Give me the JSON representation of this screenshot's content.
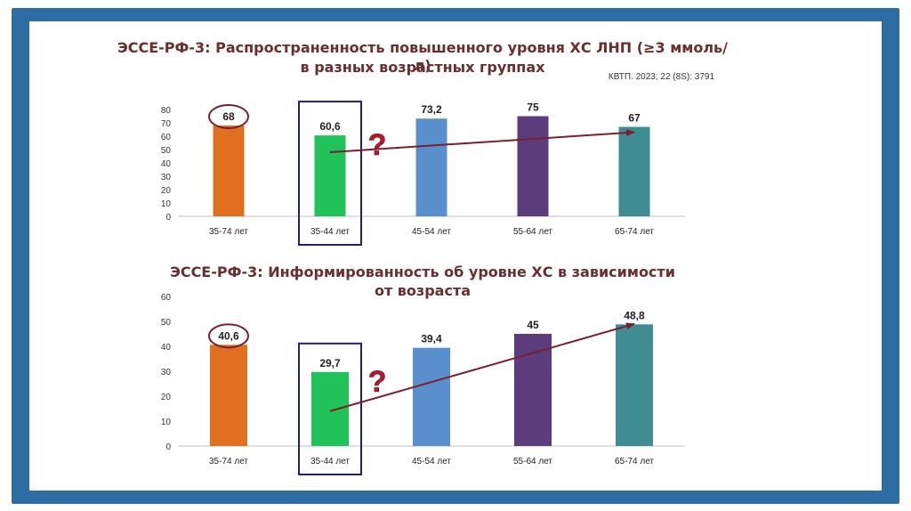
{
  "slide": {
    "source": "КВТП. 2023; 22 (8S): 3791"
  },
  "chart_data": [
    {
      "type": "bar",
      "title_line1": "ЭССЕ-РФ-3: Распространенность повышенного уровня ХС ЛНП (≥3 ммоль/л)",
      "title_line2": "в разных возрастных группах",
      "categories": [
        "35-74 лет",
        "35-44 лет",
        "45-54 лет",
        "55-64 лет",
        "65-74 лет"
      ],
      "values": [
        68,
        60.6,
        73.2,
        75,
        67
      ],
      "value_labels": [
        "68",
        "60,6",
        "73,2",
        "75",
        "67"
      ],
      "yticks": [
        0,
        10,
        20,
        30,
        40,
        50,
        60,
        70,
        80
      ],
      "ylim": [
        0,
        80
      ],
      "colors": [
        "#e0701f",
        "#22c25a",
        "#5a8fcd",
        "#5b3c7c",
        "#3f8c92"
      ],
      "circled_index": 0,
      "boxed_index": 1,
      "question_mark": "?",
      "arrow": {
        "from_index": 1,
        "from_value": 48,
        "to_index": 4,
        "to_value": 63
      }
    },
    {
      "type": "bar",
      "title_line1": "ЭССЕ-РФ-3: Информированность об уровне ХС в зависимости",
      "title_line2": "от возраста",
      "categories": [
        "35-74 лет",
        "35-44 лет",
        "45-54 лет",
        "55-64 лет",
        "65-74 лет"
      ],
      "values": [
        40.6,
        29.7,
        39.4,
        45,
        48.8
      ],
      "value_labels": [
        "40,6",
        "29,7",
        "39,4",
        "45",
        "48,8"
      ],
      "yticks": [
        0,
        10,
        20,
        30,
        40,
        50,
        60
      ],
      "ylim": [
        0,
        60
      ],
      "colors": [
        "#e0701f",
        "#22c25a",
        "#5a8fcd",
        "#5b3c7c",
        "#3f8c92"
      ],
      "circled_index": 0,
      "boxed_index": 1,
      "question_mark": "?",
      "arrow": {
        "from_index": 1,
        "from_value": 14,
        "to_index": 4,
        "to_value": 49
      }
    }
  ]
}
